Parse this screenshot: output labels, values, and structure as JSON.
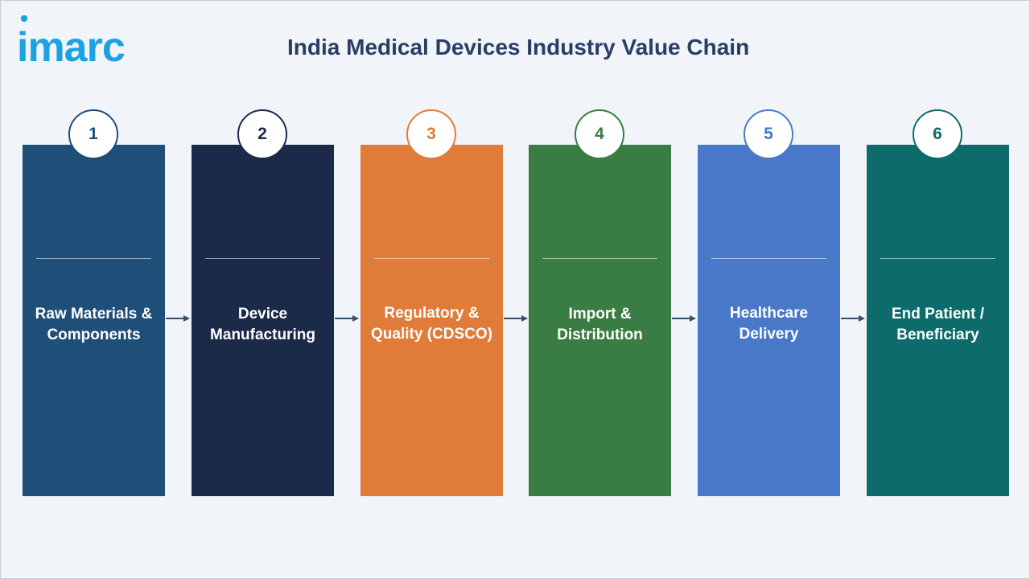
{
  "header": {
    "logo_text": "imarc",
    "title": "India Medical Devices Industry Value Chain"
  },
  "colors": {
    "background": "#f1f4f9",
    "title": "#2a3d63",
    "logo": "#1aa3e0",
    "arrow": "#33506e"
  },
  "steps": [
    {
      "number": "1",
      "line1": "Raw Materials &",
      "line2": "Components",
      "color": "#1f4e79"
    },
    {
      "number": "2",
      "line1": "Device",
      "line2": "Manufacturing",
      "color": "#1a2a48"
    },
    {
      "number": "3",
      "line1": "Regulatory &",
      "line2": "Quality (CDSCO)",
      "color": "#e07b39"
    },
    {
      "number": "4",
      "line1": "Import &",
      "line2": "Distribution",
      "color": "#3a7d44"
    },
    {
      "number": "5",
      "line1": "Healthcare",
      "line2": "Delivery",
      "color": "#4a78c8"
    },
    {
      "number": "6",
      "line1": "End Patient /",
      "line2": "Beneficiary",
      "color": "#0e6b6b"
    }
  ]
}
